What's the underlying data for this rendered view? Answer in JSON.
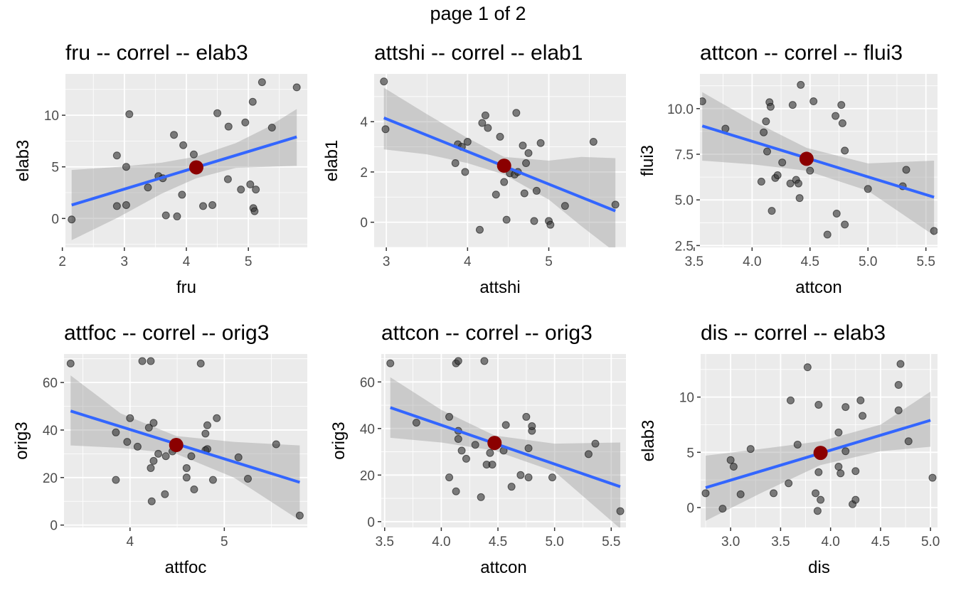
{
  "page_label": "page 1 of 2",
  "colors": {
    "panel_background": "#ebebeb",
    "grid_major": "#ffffff",
    "points": "#333333",
    "fit_line": "#3366ff",
    "confidence_band": "#999999",
    "mean_point": "#8b0000",
    "tick_text": "#4d4d4d"
  },
  "chart_data": [
    {
      "type": "scatter",
      "title": "fru -- correl -- elab3",
      "xlabel": "fru",
      "ylabel": "elab3",
      "xlim": [
        2.05,
        5.95
      ],
      "ylim": [
        -2.8,
        14.0
      ],
      "xticks": [
        2,
        3,
        4,
        5
      ],
      "xtick_labels": [
        "2",
        "3",
        "4",
        "5"
      ],
      "yticks": [
        0,
        5,
        10
      ],
      "ytick_labels": [
        "0",
        "5",
        "10"
      ],
      "grid": true,
      "points": [
        [
          2.15,
          -0.1
        ],
        [
          2.88,
          6.1
        ],
        [
          2.88,
          1.2
        ],
        [
          3.03,
          5.0
        ],
        [
          3.03,
          1.3
        ],
        [
          3.08,
          10.1
        ],
        [
          3.38,
          3.0
        ],
        [
          3.55,
          4.1
        ],
        [
          3.62,
          3.9
        ],
        [
          3.67,
          0.3
        ],
        [
          3.8,
          8.1
        ],
        [
          3.85,
          0.2
        ],
        [
          3.93,
          2.3
        ],
        [
          3.95,
          7.1
        ],
        [
          4.12,
          6.2
        ],
        [
          4.27,
          1.2
        ],
        [
          4.42,
          1.3
        ],
        [
          4.5,
          10.2
        ],
        [
          4.67,
          3.8
        ],
        [
          4.68,
          8.9
        ],
        [
          4.88,
          2.8
        ],
        [
          4.95,
          9.3
        ],
        [
          5.03,
          3.3
        ],
        [
          5.07,
          11.3
        ],
        [
          5.08,
          1.0
        ],
        [
          5.1,
          0.7
        ],
        [
          5.12,
          2.8
        ],
        [
          5.22,
          13.2
        ],
        [
          5.38,
          8.8
        ],
        [
          5.78,
          12.7
        ]
      ],
      "fit": {
        "x": [
          2.15,
          5.78
        ],
        "y": [
          1.3,
          7.9
        ]
      },
      "band": {
        "x": [
          2.15,
          2.9,
          3.6,
          4.16,
          4.8,
          5.3,
          5.78
        ],
        "upper": [
          4.7,
          5.0,
          5.4,
          6.0,
          7.3,
          8.8,
          10.6
        ],
        "lower": [
          -2.1,
          0.1,
          2.4,
          3.9,
          4.9,
          5.0,
          5.1
        ]
      },
      "mean": [
        4.16,
        4.95
      ]
    },
    {
      "type": "scatter",
      "title": "attshi -- correl -- elab1",
      "xlabel": "attshi",
      "ylabel": "elab1",
      "xlim": [
        2.85,
        5.95
      ],
      "ylim": [
        -1.0,
        5.9
      ],
      "xticks": [
        3,
        4,
        5
      ],
      "xtick_labels": [
        "3",
        "4",
        "5"
      ],
      "yticks": [
        0,
        2,
        4
      ],
      "ytick_labels": [
        "0",
        "2",
        "4"
      ],
      "grid": true,
      "points": [
        [
          2.97,
          5.6
        ],
        [
          2.99,
          3.7
        ],
        [
          3.85,
          2.35
        ],
        [
          3.88,
          3.1
        ],
        [
          3.93,
          3.0
        ],
        [
          3.97,
          2.0
        ],
        [
          4.0,
          3.2
        ],
        [
          4.15,
          -0.3
        ],
        [
          4.18,
          3.95
        ],
        [
          4.22,
          4.25
        ],
        [
          4.25,
          3.75
        ],
        [
          4.35,
          1.1
        ],
        [
          4.4,
          3.4
        ],
        [
          4.45,
          1.6
        ],
        [
          4.48,
          0.1
        ],
        [
          4.52,
          1.95
        ],
        [
          4.58,
          1.9
        ],
        [
          4.6,
          4.35
        ],
        [
          4.62,
          2.0
        ],
        [
          4.68,
          3.05
        ],
        [
          4.7,
          1.15
        ],
        [
          4.72,
          2.35
        ],
        [
          4.75,
          2.75
        ],
        [
          4.82,
          0.05
        ],
        [
          4.85,
          1.25
        ],
        [
          4.9,
          3.15
        ],
        [
          5.0,
          0.05
        ],
        [
          5.02,
          -0.1
        ],
        [
          5.2,
          0.65
        ],
        [
          5.55,
          3.2
        ],
        [
          5.82,
          0.7
        ]
      ],
      "fit": {
        "x": [
          2.97,
          5.82
        ],
        "y": [
          4.15,
          0.45
        ]
      },
      "band": {
        "x": [
          2.97,
          3.5,
          4.0,
          4.45,
          5.0,
          5.4,
          5.82
        ],
        "upper": [
          5.35,
          4.3,
          3.35,
          2.6,
          2.45,
          2.6,
          2.55
        ],
        "lower": [
          2.9,
          2.7,
          2.35,
          1.9,
          0.9,
          -0.15,
          -1.2
        ]
      },
      "mean": [
        4.45,
        2.25
      ]
    },
    {
      "type": "scatter",
      "title": "attcon -- correl -- flui3",
      "xlabel": "attcon",
      "ylabel": "flui3",
      "xlim": [
        3.55,
        5.6
      ],
      "ylim": [
        2.4,
        11.9
      ],
      "xticks": [
        3.5,
        4.0,
        4.5,
        5.0,
        5.5
      ],
      "xtick_labels": [
        "3.5",
        "4.0",
        "4.5",
        "5.0",
        "5.5"
      ],
      "yticks": [
        2.5,
        5.0,
        7.5,
        10.0
      ],
      "ytick_labels": [
        "2.5",
        "5.0",
        "7.5",
        "10.0"
      ],
      "grid": true,
      "points": [
        [
          3.57,
          10.4
        ],
        [
          3.77,
          8.9
        ],
        [
          4.08,
          6.0
        ],
        [
          4.1,
          8.7
        ],
        [
          4.12,
          9.3
        ],
        [
          4.13,
          7.65
        ],
        [
          4.15,
          10.35
        ],
        [
          4.16,
          10.1
        ],
        [
          4.17,
          4.4
        ],
        [
          4.2,
          6.2
        ],
        [
          4.22,
          6.35
        ],
        [
          4.26,
          7.05
        ],
        [
          4.33,
          5.9
        ],
        [
          4.35,
          10.2
        ],
        [
          4.38,
          6.1
        ],
        [
          4.4,
          5.9
        ],
        [
          4.41,
          5.1
        ],
        [
          4.42,
          11.3
        ],
        [
          4.5,
          6.6
        ],
        [
          4.53,
          10.4
        ],
        [
          4.65,
          3.1
        ],
        [
          4.72,
          9.6
        ],
        [
          4.73,
          4.25
        ],
        [
          4.77,
          10.2
        ],
        [
          4.78,
          9.2
        ],
        [
          4.8,
          7.7
        ],
        [
          4.8,
          3.65
        ],
        [
          5.0,
          5.6
        ],
        [
          5.3,
          5.75
        ],
        [
          5.33,
          6.65
        ],
        [
          5.57,
          3.3
        ]
      ],
      "fit": {
        "x": [
          3.57,
          5.57
        ],
        "y": [
          9.05,
          5.15
        ]
      },
      "band": {
        "x": [
          3.57,
          4.0,
          4.47,
          5.0,
          5.57
        ],
        "upper": [
          10.9,
          9.35,
          7.85,
          7.0,
          7.15
        ],
        "lower": [
          7.15,
          6.95,
          6.6,
          5.5,
          3.05
        ]
      },
      "mean": [
        4.47,
        7.25
      ]
    },
    {
      "type": "scatter",
      "title": "attfoc -- correl -- orig3",
      "xlabel": "attfoc",
      "ylabel": "orig3",
      "xlim": [
        3.3,
        5.88
      ],
      "ylim": [
        -1.0,
        72.0
      ],
      "xticks": [
        4,
        5
      ],
      "xtick_labels": [
        "4",
        "5"
      ],
      "yticks": [
        0,
        20,
        40,
        60
      ],
      "ytick_labels": [
        "0",
        "20",
        "40",
        "60"
      ],
      "grid": true,
      "points": [
        [
          3.37,
          68
        ],
        [
          3.85,
          39
        ],
        [
          3.85,
          19
        ],
        [
          3.97,
          35
        ],
        [
          4.0,
          45
        ],
        [
          4.08,
          33
        ],
        [
          4.13,
          69
        ],
        [
          4.2,
          41
        ],
        [
          4.22,
          69
        ],
        [
          4.22,
          24
        ],
        [
          4.23,
          10
        ],
        [
          4.25,
          43
        ],
        [
          4.25,
          27
        ],
        [
          4.3,
          30
        ],
        [
          4.37,
          13
        ],
        [
          4.38,
          29
        ],
        [
          4.45,
          31
        ],
        [
          4.6,
          20
        ],
        [
          4.6,
          24
        ],
        [
          4.65,
          29
        ],
        [
          4.68,
          15
        ],
        [
          4.75,
          68
        ],
        [
          4.8,
          31.5
        ],
        [
          4.8,
          38.5
        ],
        [
          4.82,
          42
        ],
        [
          4.82,
          32
        ],
        [
          4.88,
          19
        ],
        [
          4.92,
          45
        ],
        [
          5.15,
          28.5
        ],
        [
          5.25,
          19.5
        ],
        [
          5.55,
          34
        ],
        [
          5.8,
          4
        ]
      ],
      "fit": {
        "x": [
          3.37,
          5.8
        ],
        "y": [
          48,
          18
        ]
      },
      "band": {
        "x": [
          3.37,
          3.9,
          4.49,
          5.1,
          5.8
        ],
        "upper": [
          63,
          47,
          37.5,
          35,
          33.5
        ],
        "lower": [
          33.5,
          32.5,
          30,
          20,
          2
        ]
      },
      "mean": [
        4.49,
        33.7
      ]
    },
    {
      "type": "scatter",
      "title": "attcon -- correl -- orig3",
      "xlabel": "attcon",
      "ylabel": "orig3",
      "xlim": [
        3.47,
        5.63
      ],
      "ylim": [
        -2.5,
        72.0
      ],
      "xticks": [
        3.5,
        4.0,
        4.5,
        5.0,
        5.5
      ],
      "xtick_labels": [
        "3.5",
        "4.0",
        "4.5",
        "5.0",
        "5.5"
      ],
      "yticks": [
        0,
        20,
        40,
        60
      ],
      "ytick_labels": [
        "0",
        "20",
        "40",
        "60"
      ],
      "grid": true,
      "points": [
        [
          3.55,
          68
        ],
        [
          3.78,
          42.5
        ],
        [
          4.07,
          45
        ],
        [
          4.07,
          19
        ],
        [
          4.13,
          68
        ],
        [
          4.13,
          13
        ],
        [
          4.15,
          69
        ],
        [
          4.15,
          39
        ],
        [
          4.15,
          35.5
        ],
        [
          4.18,
          30.5
        ],
        [
          4.22,
          27
        ],
        [
          4.3,
          33
        ],
        [
          4.35,
          10.5
        ],
        [
          4.38,
          69
        ],
        [
          4.4,
          24.5
        ],
        [
          4.43,
          29.5
        ],
        [
          4.45,
          24.5
        ],
        [
          4.48,
          33
        ],
        [
          4.55,
          30.5
        ],
        [
          4.57,
          41.5
        ],
        [
          4.62,
          15
        ],
        [
          4.7,
          20
        ],
        [
          4.75,
          45
        ],
        [
          4.77,
          31.5
        ],
        [
          4.77,
          19
        ],
        [
          4.8,
          39
        ],
        [
          4.8,
          41
        ],
        [
          4.98,
          19
        ],
        [
          5.3,
          29
        ],
        [
          5.36,
          33.5
        ],
        [
          5.58,
          4.5
        ]
      ],
      "fit": {
        "x": [
          3.55,
          5.58
        ],
        "y": [
          49,
          15
        ]
      },
      "band": {
        "x": [
          3.55,
          4.0,
          4.47,
          5.0,
          5.58
        ],
        "upper": [
          62,
          48,
          37,
          33.5,
          34
        ],
        "lower": [
          36,
          34,
          30.5,
          21.5,
          -3
        ]
      },
      "mean": [
        4.47,
        33.8
      ]
    },
    {
      "type": "scatter",
      "title": "dis -- correl -- elab3",
      "xlabel": "dis",
      "ylabel": "elab3",
      "xlim": [
        2.7,
        5.07
      ],
      "ylim": [
        -1.8,
        13.9
      ],
      "xticks": [
        3.0,
        3.5,
        4.0,
        4.5,
        5.0
      ],
      "xtick_labels": [
        "3.0",
        "3.5",
        "4.0",
        "4.5",
        "5.0"
      ],
      "yticks": [
        0,
        5,
        10
      ],
      "ytick_labels": [
        "0",
        "5",
        "10"
      ],
      "grid": true,
      "points": [
        [
          2.75,
          1.3
        ],
        [
          2.92,
          -0.1
        ],
        [
          3.0,
          4.3
        ],
        [
          3.03,
          3.7
        ],
        [
          3.1,
          1.2
        ],
        [
          3.2,
          5.3
        ],
        [
          3.43,
          1.3
        ],
        [
          3.58,
          2.2
        ],
        [
          3.6,
          9.7
        ],
        [
          3.67,
          5.7
        ],
        [
          3.77,
          12.7
        ],
        [
          3.85,
          1.3
        ],
        [
          3.87,
          -0.3
        ],
        [
          3.88,
          9.3
        ],
        [
          3.88,
          3.2
        ],
        [
          3.9,
          0.7
        ],
        [
          4.08,
          6.8
        ],
        [
          4.08,
          3.7
        ],
        [
          4.1,
          3.1
        ],
        [
          4.15,
          5.1
        ],
        [
          4.15,
          9.1
        ],
        [
          4.22,
          0.3
        ],
        [
          4.25,
          3.3
        ],
        [
          4.25,
          0.7
        ],
        [
          4.3,
          9.7
        ],
        [
          4.32,
          8.3
        ],
        [
          4.68,
          8.8
        ],
        [
          4.68,
          11.1
        ],
        [
          4.7,
          13.0
        ],
        [
          4.78,
          6.0
        ],
        [
          5.02,
          2.7
        ]
      ],
      "fit": {
        "x": [
          2.75,
          5.0
        ],
        "y": [
          1.8,
          7.9
        ]
      },
      "band": {
        "x": [
          2.75,
          3.3,
          3.9,
          4.5,
          5.0
        ],
        "upper": [
          4.7,
          5.3,
          6.0,
          7.5,
          10.5
        ],
        "lower": [
          -1.2,
          1.3,
          3.85,
          5.1,
          5.5
        ]
      },
      "mean": [
        3.9,
        4.95
      ]
    }
  ]
}
